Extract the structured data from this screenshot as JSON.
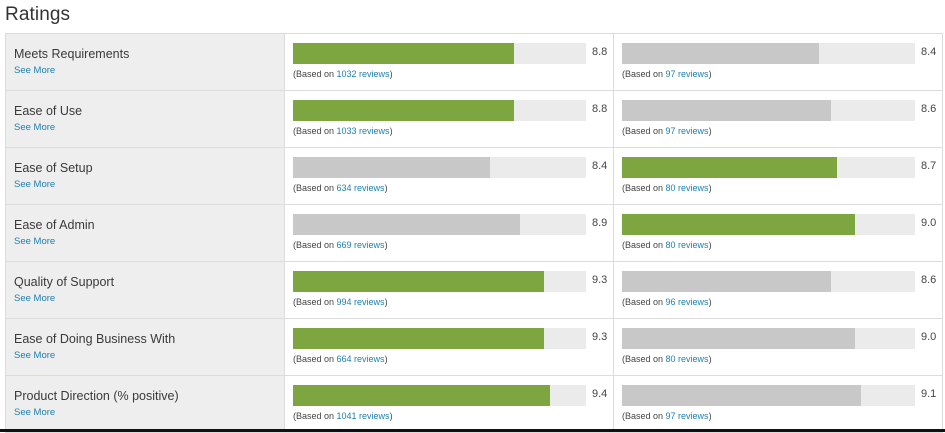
{
  "title": "Ratings",
  "see_more": "See More",
  "based_prefix": "(Based on ",
  "based_suffix": ")",
  "colors": {
    "winner_bar": "#7ea640",
    "other_bar": "#c8c8c8",
    "track": "#ebebeb",
    "link": "#1d7fb0"
  },
  "scale_max": 10,
  "rows": [
    {
      "label": "Meets Requirements",
      "a": {
        "value": "8.8",
        "reviews": "1032 reviews",
        "winner": true
      },
      "b": {
        "value": "8.4",
        "reviews": "97 reviews",
        "winner": false
      }
    },
    {
      "label": "Ease of Use",
      "a": {
        "value": "8.8",
        "reviews": "1033 reviews",
        "winner": true
      },
      "b": {
        "value": "8.6",
        "reviews": "97 reviews",
        "winner": false
      }
    },
    {
      "label": "Ease of Setup",
      "a": {
        "value": "8.4",
        "reviews": "634 reviews",
        "winner": false
      },
      "b": {
        "value": "8.7",
        "reviews": "80 reviews",
        "winner": true
      }
    },
    {
      "label": "Ease of Admin",
      "a": {
        "value": "8.9",
        "reviews": "669 reviews",
        "winner": false
      },
      "b": {
        "value": "9.0",
        "reviews": "80 reviews",
        "winner": true
      }
    },
    {
      "label": "Quality of Support",
      "a": {
        "value": "9.3",
        "reviews": "994 reviews",
        "winner": true
      },
      "b": {
        "value": "8.6",
        "reviews": "96 reviews",
        "winner": false
      }
    },
    {
      "label": "Ease of Doing Business With",
      "a": {
        "value": "9.3",
        "reviews": "664 reviews",
        "winner": true
      },
      "b": {
        "value": "9.0",
        "reviews": "80 reviews",
        "winner": false
      }
    },
    {
      "label": "Product Direction (% positive)",
      "a": {
        "value": "9.4",
        "reviews": "1041 reviews",
        "winner": true
      },
      "b": {
        "value": "9.1",
        "reviews": "97 reviews",
        "winner": false
      }
    }
  ]
}
